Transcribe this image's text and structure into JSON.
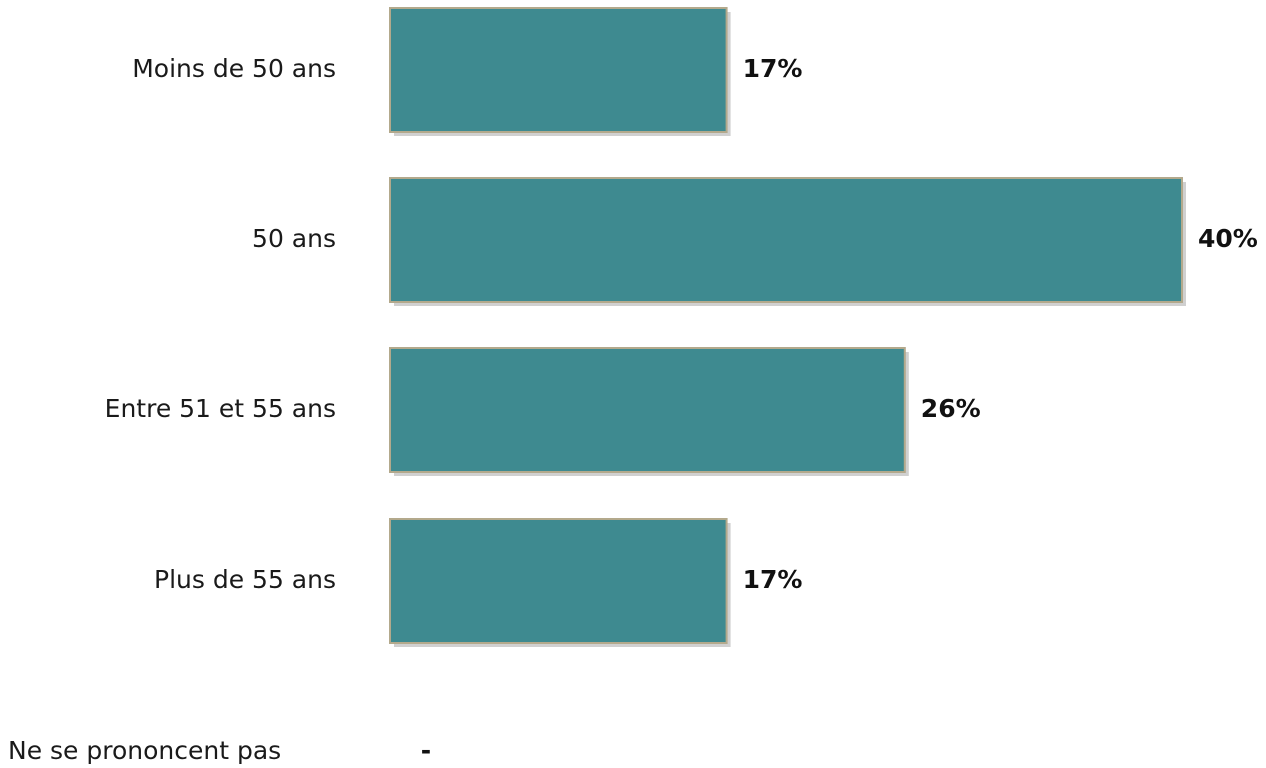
{
  "chart_data": {
    "type": "bar",
    "orientation": "horizontal",
    "categories": [
      "Moins de 50 ans",
      "50 ans",
      "Entre 51 et 55 ans",
      "Plus de 55 ans",
      "Ne se prononcent pas"
    ],
    "values": [
      17,
      40,
      26,
      17,
      0
    ],
    "value_labels": [
      "17%",
      "40%",
      "26%",
      "17%",
      "-"
    ],
    "title": "",
    "xlabel": "",
    "ylabel": "",
    "xlim": [
      0,
      40
    ],
    "grid": false,
    "legend": "none",
    "colors": {
      "bar": "#3e8a90",
      "bar_border": "#b3a98c"
    }
  }
}
